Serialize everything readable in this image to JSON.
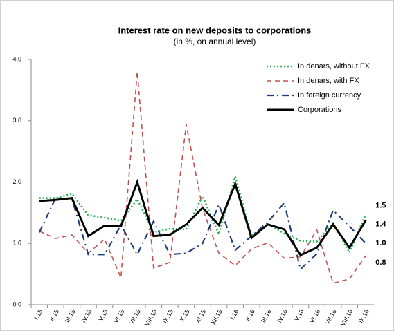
{
  "chart_data": {
    "type": "line",
    "title": "Interest rate on new deposits to corporations",
    "subtitle": "(in %, on annual level)",
    "categories": [
      "I.15",
      "II.15",
      "III.15",
      "IV.15",
      "V.15",
      "VI.15",
      "VII.15",
      "VIII.15",
      "IX.15",
      "X.15",
      "XI.15",
      "XII.15",
      "I.16",
      "II.16",
      "III.16",
      "IV.16",
      "V.16",
      "VI.16",
      "VII.16",
      "VIII.16",
      "IX.16"
    ],
    "series": [
      {
        "name": "In denars, without FX",
        "color": "#22b14c",
        "dash": "dot",
        "values": [
          1.74,
          1.74,
          1.81,
          1.46,
          1.42,
          1.37,
          1.72,
          1.18,
          1.24,
          1.23,
          1.77,
          1.15,
          2.09,
          1.12,
          1.32,
          1.16,
          1.04,
          1.03,
          1.33,
          0.85,
          1.48
        ],
        "value_labels": [
          null,
          null,
          null,
          null,
          null,
          null,
          null,
          null,
          null,
          null,
          null,
          null,
          null,
          null,
          null,
          null,
          null,
          null,
          null,
          null,
          "1.5"
        ]
      },
      {
        "name": "In denars, with FX",
        "color": "#c0504d",
        "dash": "dash",
        "values": [
          1.2,
          1.08,
          1.14,
          0.84,
          1.07,
          0.44,
          3.8,
          0.6,
          0.69,
          2.94,
          1.57,
          0.84,
          0.64,
          0.91,
          1.01,
          0.76,
          0.78,
          1.22,
          0.35,
          0.42,
          0.8
        ],
        "value_labels": [
          null,
          null,
          null,
          null,
          null,
          null,
          null,
          null,
          null,
          null,
          null,
          null,
          null,
          null,
          null,
          null,
          null,
          null,
          null,
          null,
          "0.8"
        ]
      },
      {
        "name": "In foreign currency",
        "color": "#1f3d7a",
        "dash": "dashdot",
        "values": [
          1.18,
          1.74,
          1.73,
          0.82,
          0.82,
          1.3,
          0.82,
          1.36,
          0.82,
          0.84,
          1.0,
          1.63,
          0.89,
          1.12,
          1.35,
          1.66,
          0.58,
          0.83,
          1.54,
          1.28,
          1.0
        ],
        "value_labels": [
          null,
          null,
          null,
          null,
          null,
          null,
          null,
          null,
          null,
          null,
          null,
          null,
          null,
          null,
          null,
          null,
          null,
          null,
          null,
          null,
          "1.0"
        ]
      },
      {
        "name": "Corporations",
        "color": "#000000",
        "dash": "solid",
        "values": [
          1.69,
          1.71,
          1.74,
          1.12,
          1.29,
          1.28,
          2.0,
          1.12,
          1.14,
          1.31,
          1.58,
          1.3,
          1.97,
          1.09,
          1.31,
          1.23,
          0.81,
          0.93,
          1.31,
          0.93,
          1.38
        ],
        "value_labels": [
          null,
          null,
          null,
          null,
          null,
          null,
          null,
          null,
          null,
          null,
          null,
          null,
          null,
          null,
          null,
          null,
          null,
          null,
          null,
          null,
          "1.4"
        ]
      }
    ],
    "ylim": [
      0,
      4
    ],
    "yticks": [
      {
        "value": 0,
        "label": "0.0"
      },
      {
        "value": 1,
        "label": "1.0"
      },
      {
        "value": 2,
        "label": "2.0"
      },
      {
        "value": 3,
        "label": "3.0"
      },
      {
        "value": 4,
        "label": "4.0"
      }
    ],
    "legend": "top-right"
  }
}
